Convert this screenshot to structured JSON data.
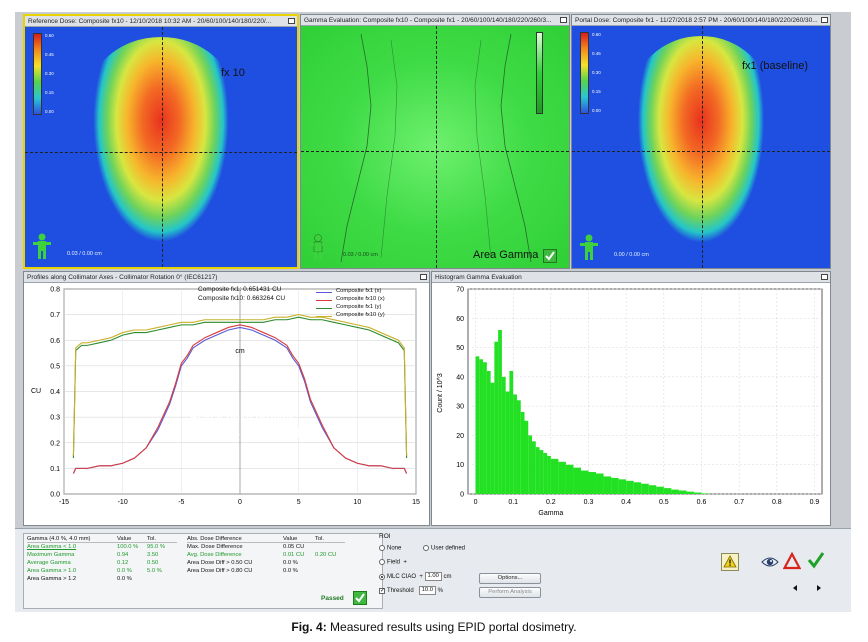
{
  "panes": {
    "reference": {
      "title": "Reference Dose: Composite fx10 - 12/10/2018 10:32 AM - 20/60/100/140/180/220/...",
      "label": "fx 10",
      "coord": "0.03 / 0.00 cm",
      "colorbar_ticks": [
        "0.60",
        "0.45",
        "0.30",
        "0.15",
        "0.00"
      ]
    },
    "gamma": {
      "title": "Gamma Evaluation: Composite fx10 - Composite fx1 - 20/60/100/140/180/220/260/3...",
      "label": "Area Gamma",
      "coord": "0.03 / 0.00 cm"
    },
    "portal": {
      "title": "Portal Dose: Composite fx1 - 11/27/2018 2:57 PM - 20/60/100/140/180/220/260/30...",
      "label": "fx1 (baseline)",
      "coord": "0.00 / 0.00 cm",
      "colorbar_ticks": [
        "0.60",
        "0.45",
        "0.30",
        "0.15",
        "0.00"
      ]
    },
    "profiles": {
      "title": "Profiles along Collimator Axes - Collimator Rotation 0° (IEC61217)",
      "readout1": "Composite fx1: 0.651431 CU",
      "readout2": "Composite fx10: 0.663264 CU",
      "annotation_line1": "Planar dose profiles:",
      "annotation_line2": "fx10 vs fx1 (baseline)"
    },
    "histogram": {
      "title": "Histogram Gamma Evaluation"
    }
  },
  "chart_data": [
    {
      "type": "line",
      "title": "",
      "xlabel": "cm",
      "ylabel": "CU",
      "xlim": [
        -15,
        15
      ],
      "ylim": [
        0,
        0.8
      ],
      "xticks": [
        -15,
        -10,
        -5,
        0,
        5,
        10,
        15
      ],
      "yticks": [
        0,
        0.1,
        0.2,
        0.3,
        0.4,
        0.5,
        0.6,
        0.7,
        0.8
      ],
      "legend_position": "top-right",
      "series": [
        {
          "name": "Composite fx1 (x)",
          "color": "#5a5ad8",
          "x": [
            -14.2,
            -14,
            -13,
            -12,
            -11,
            -10,
            -9,
            -8,
            -7,
            -6,
            -5.5,
            -5,
            -4.5,
            -4,
            -3,
            -2,
            -1,
            0,
            1,
            2,
            3,
            4,
            4.5,
            5,
            5.5,
            6,
            7,
            8,
            9,
            10,
            11,
            12,
            13,
            14,
            14.2
          ],
          "y": [
            0.08,
            0.1,
            0.1,
            0.11,
            0.11,
            0.12,
            0.14,
            0.18,
            0.25,
            0.35,
            0.42,
            0.5,
            0.53,
            0.57,
            0.6,
            0.62,
            0.64,
            0.65,
            0.64,
            0.62,
            0.6,
            0.57,
            0.53,
            0.5,
            0.44,
            0.36,
            0.26,
            0.18,
            0.14,
            0.12,
            0.11,
            0.11,
            0.1,
            0.1,
            0.08
          ]
        },
        {
          "name": "Composite fx10 (x)",
          "color": "#d83c3c",
          "x": [
            -14.2,
            -14,
            -13,
            -12,
            -11,
            -10,
            -9,
            -8,
            -7,
            -6,
            -5.5,
            -5,
            -4.5,
            -4,
            -3,
            -2,
            -1,
            0,
            1,
            2,
            3,
            4,
            4.5,
            5,
            5.5,
            6,
            7,
            8,
            9,
            10,
            11,
            12,
            13,
            14,
            14.2
          ],
          "y": [
            0.08,
            0.1,
            0.1,
            0.11,
            0.11,
            0.12,
            0.14,
            0.18,
            0.26,
            0.36,
            0.43,
            0.51,
            0.54,
            0.58,
            0.61,
            0.63,
            0.65,
            0.66,
            0.65,
            0.63,
            0.61,
            0.58,
            0.54,
            0.51,
            0.45,
            0.37,
            0.27,
            0.18,
            0.14,
            0.12,
            0.11,
            0.11,
            0.1,
            0.1,
            0.08
          ]
        },
        {
          "name": "Composite fx1 (y)",
          "color": "#2c8a2c",
          "x": [
            -14.2,
            -14,
            -13.5,
            -13,
            -12,
            -11,
            -10,
            -9,
            -8,
            -7,
            -6,
            -5,
            -4,
            -3,
            -2,
            -1,
            0,
            1,
            2,
            3,
            4,
            5,
            6,
            7,
            8,
            9,
            10,
            11,
            12,
            13,
            13.5,
            14,
            14.2
          ],
          "y": [
            0.14,
            0.56,
            0.58,
            0.58,
            0.59,
            0.6,
            0.62,
            0.63,
            0.63,
            0.64,
            0.65,
            0.66,
            0.66,
            0.67,
            0.67,
            0.67,
            0.67,
            0.67,
            0.67,
            0.68,
            0.68,
            0.69,
            0.68,
            0.68,
            0.67,
            0.66,
            0.65,
            0.64,
            0.62,
            0.6,
            0.59,
            0.56,
            0.14
          ]
        },
        {
          "name": "Composite fx10 (y)",
          "color": "#c8b02a",
          "x": [
            -14.2,
            -14,
            -13.5,
            -13,
            -12,
            -11,
            -10,
            -9,
            -8,
            -7,
            -6,
            -5,
            -4,
            -3,
            -2,
            -1,
            0,
            1,
            2,
            3,
            4,
            5,
            6,
            7,
            8,
            9,
            10,
            11,
            12,
            13,
            13.5,
            14,
            14.2
          ],
          "y": [
            0.15,
            0.57,
            0.59,
            0.59,
            0.6,
            0.61,
            0.63,
            0.64,
            0.64,
            0.65,
            0.66,
            0.67,
            0.67,
            0.68,
            0.68,
            0.68,
            0.68,
            0.68,
            0.68,
            0.69,
            0.69,
            0.7,
            0.69,
            0.69,
            0.68,
            0.67,
            0.66,
            0.65,
            0.63,
            0.61,
            0.6,
            0.57,
            0.15
          ]
        }
      ]
    },
    {
      "type": "bar",
      "title": "",
      "xlabel": "Gamma",
      "ylabel": "Count / 10^3",
      "xlim": [
        -0.02,
        0.92
      ],
      "ylim": [
        0,
        70
      ],
      "xticks": [
        0,
        0.1,
        0.2,
        0.3,
        0.4,
        0.5,
        0.6,
        0.7,
        0.8,
        0.9
      ],
      "yticks": [
        0,
        10,
        20,
        30,
        40,
        50,
        60,
        70
      ],
      "color": "#22e022",
      "x": [
        0.005,
        0.015,
        0.025,
        0.035,
        0.045,
        0.055,
        0.065,
        0.075,
        0.085,
        0.095,
        0.105,
        0.115,
        0.125,
        0.135,
        0.145,
        0.155,
        0.165,
        0.175,
        0.185,
        0.195,
        0.21,
        0.23,
        0.25,
        0.27,
        0.29,
        0.31,
        0.33,
        0.35,
        0.37,
        0.39,
        0.41,
        0.43,
        0.45,
        0.47,
        0.49,
        0.51,
        0.53,
        0.55,
        0.57,
        0.59,
        0.61
      ],
      "values": [
        47,
        46,
        45,
        42,
        38,
        52,
        56,
        40,
        35,
        42,
        34,
        32,
        28,
        25,
        20,
        18,
        16,
        15,
        14,
        13,
        12,
        11,
        10,
        9,
        8,
        7.5,
        7,
        6,
        5.5,
        5,
        4.5,
        4,
        3.5,
        3,
        2.5,
        2,
        1.5,
        1.2,
        0.8,
        0.5,
        0.2
      ]
    }
  ],
  "gamma_table": {
    "headers": [
      "Gamma (4.0 %, 4.0 mm)",
      "Value",
      "Tol."
    ],
    "rows": [
      [
        "Area Gamma < 1.0",
        "100.0 %",
        "95.0 %"
      ],
      [
        "Maximum Gamma",
        "0.94",
        "3.50"
      ],
      [
        "Average Gamma",
        "0.12",
        "0.50"
      ],
      [
        "Area Gamma > 1.0",
        "0.0 %",
        "5.0 %"
      ],
      [
        "Area Gamma > 1.2",
        "0.0 %",
        ""
      ]
    ]
  },
  "dose_table": {
    "headers": [
      "Abs. Dose Difference",
      "Value",
      "Tol."
    ],
    "rows": [
      [
        "Max. Dose Difference",
        "0.05 CU",
        ""
      ],
      [
        "Avg. Dose Difference",
        "0.01 CU",
        "0.20 CU"
      ],
      [
        "Area Dose Diff > 0.50 CU",
        "0.0 %",
        ""
      ],
      [
        "Area Dose Diff > 0.80 CU",
        "0.0 %",
        ""
      ]
    ]
  },
  "status": {
    "passed": "Passed"
  },
  "roi": {
    "title": "ROI",
    "none": "None",
    "user_defined": "User defined",
    "field": "Field",
    "plus": "+",
    "mlc_ciao": "MLC CIAO",
    "mlc_value": "1.00",
    "mlc_unit": "cm",
    "threshold": "Threshold",
    "threshold_value": "10.0",
    "threshold_unit": "%",
    "options": "Options...",
    "perform": "Perform Analysis"
  },
  "caption": {
    "label": "Fig. 4:",
    "text": " Measured results using EPID portal dosimetry."
  }
}
